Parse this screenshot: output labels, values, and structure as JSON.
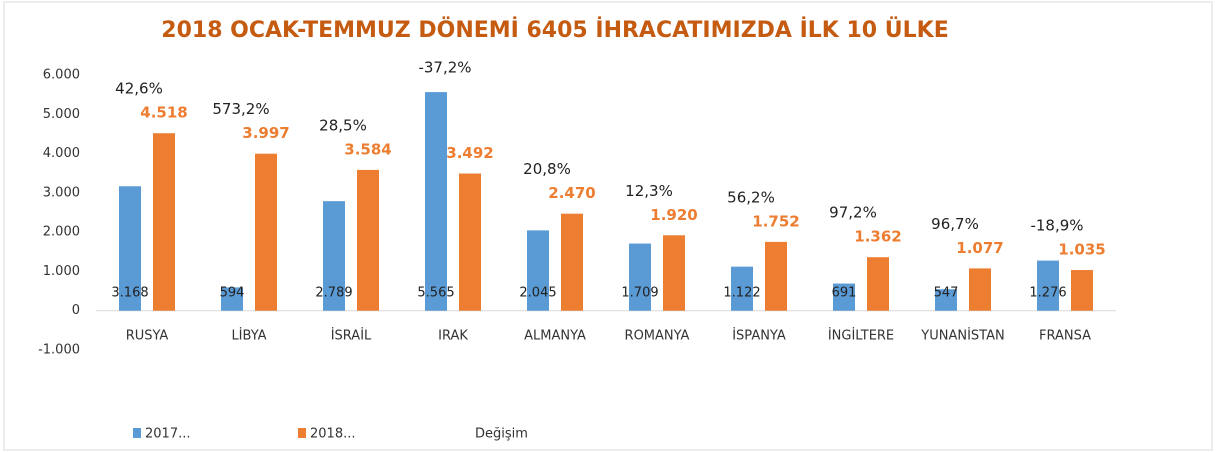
{
  "chart_data": {
    "type": "bar",
    "title": "2018 OCAK-TEMMUZ DÖNEMİ 6405 İHRACATIMIZDA İLK  10 ÜLKE",
    "categories": [
      "RUSYA",
      "LİBYA",
      "İSRAİL",
      "IRAK",
      "ALMANYA",
      "ROMANYA",
      "İSPANYA",
      "İNGİLTERE",
      "YUNANİSTAN",
      "FRANSA"
    ],
    "series": [
      {
        "name": "2017...",
        "color": "#5b9bd5",
        "values": [
          3168,
          594,
          2789,
          5565,
          2045,
          1709,
          1122,
          691,
          547,
          1276
        ],
        "value_labels": [
          "3.168",
          "594",
          "2.789",
          "5.565",
          "2.045",
          "1.709",
          "1.122",
          "691",
          "547",
          "1.276"
        ]
      },
      {
        "name": "2018...",
        "color": "#ed7d31",
        "values": [
          4518,
          3997,
          3584,
          3492,
          2470,
          1920,
          1752,
          1362,
          1077,
          1035
        ],
        "value_labels": [
          "4.518",
          "3.997",
          "3.584",
          "3.492",
          "2.470",
          "1.920",
          "1.752",
          "1.362",
          "1.077",
          "1.035"
        ]
      },
      {
        "name": "Değişim",
        "values": [
          42.6,
          573.2,
          28.5,
          -37.2,
          20.8,
          12.3,
          56.2,
          97.2,
          96.7,
          -18.9
        ],
        "value_labels": [
          "42,6%",
          "573,2%",
          "28,5%",
          "-37,2%",
          "20,8%",
          "12,3%",
          "56,2%",
          "97,2%",
          "96,7%",
          "-18,9%"
        ]
      }
    ],
    "ylim": [
      -1000,
      6000
    ],
    "yticks": [
      {
        "value": -1000,
        "label": "-1.000"
      },
      0,
      {
        "value": 1000,
        "label": "1.000"
      },
      {
        "value": 2000,
        "label": "2.000"
      },
      {
        "value": 3000,
        "label": "3.000"
      },
      {
        "value": 4000,
        "label": "4.000"
      },
      {
        "value": 5000,
        "label": "5.000"
      },
      {
        "value": 6000,
        "label": "6.000"
      }
    ],
    "legend": "bottom"
  }
}
